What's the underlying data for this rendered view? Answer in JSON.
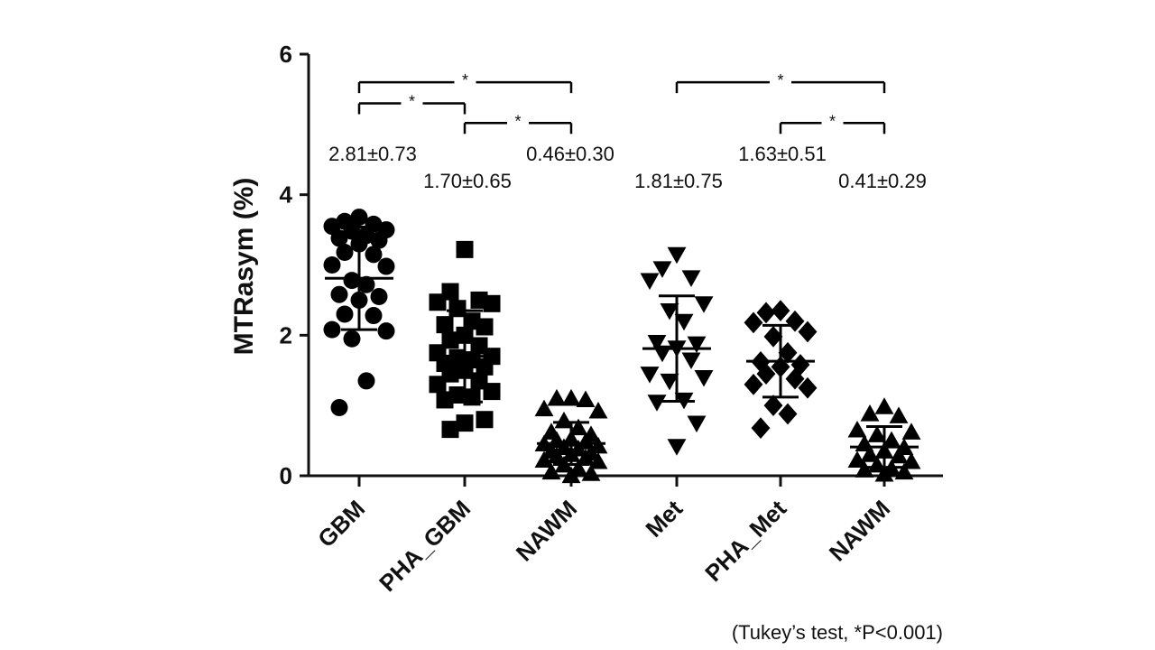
{
  "chart_data": {
    "type": "scatter",
    "ylabel": "MTRasym (%)",
    "ylim": [
      0,
      6
    ],
    "yticks": [
      0,
      2,
      4,
      6
    ],
    "categories": [
      "GBM",
      "PHA_GBM",
      "NAWM",
      "Met",
      "PHA_Met",
      "NAWM"
    ],
    "groups": [
      {
        "marker": "circle",
        "mean": 2.81,
        "sd": 0.73,
        "stat_label": "2.81±0.73",
        "points": [
          3.68,
          3.62,
          3.58,
          3.55,
          3.5,
          3.48,
          3.42,
          3.38,
          3.35,
          3.3,
          3.18,
          3.15,
          3.0,
          2.98,
          2.78,
          2.72,
          2.58,
          2.55,
          2.5,
          2.3,
          2.28,
          2.08,
          2.06,
          1.95,
          1.35,
          0.97
        ]
      },
      {
        "marker": "square",
        "mean": 1.7,
        "sd": 0.65,
        "stat_label": "1.70±0.65",
        "points": [
          3.22,
          2.62,
          2.5,
          2.47,
          2.45,
          2.38,
          2.2,
          2.15,
          2.12,
          2.0,
          1.93,
          1.85,
          1.75,
          1.7,
          1.68,
          1.65,
          1.6,
          1.55,
          1.5,
          1.45,
          1.35,
          1.3,
          1.2,
          1.15,
          1.12,
          1.08,
          0.8,
          0.75,
          0.66
        ]
      },
      {
        "marker": "triangle-up",
        "mean": 0.46,
        "sd": 0.3,
        "stat_label": "0.46±0.30",
        "points": [
          1.1,
          1.1,
          1.08,
          0.95,
          0.92,
          0.78,
          0.68,
          0.62,
          0.58,
          0.52,
          0.5,
          0.48,
          0.45,
          0.42,
          0.4,
          0.38,
          0.35,
          0.32,
          0.3,
          0.28,
          0.25,
          0.22,
          0.2,
          0.15,
          0.1,
          0.05,
          0.03,
          0.0
        ]
      },
      {
        "marker": "triangle-down",
        "mean": 1.81,
        "sd": 0.75,
        "stat_label": "1.81±0.75",
        "points": [
          3.15,
          2.95,
          2.82,
          2.78,
          2.45,
          2.35,
          2.2,
          1.9,
          1.88,
          1.82,
          1.75,
          1.65,
          1.45,
          1.4,
          1.35,
          1.08,
          1.05,
          0.75,
          0.42
        ]
      },
      {
        "marker": "diamond",
        "mean": 1.63,
        "sd": 0.51,
        "stat_label": "1.63±0.51",
        "points": [
          2.35,
          2.32,
          2.2,
          2.18,
          2.05,
          1.98,
          1.75,
          1.62,
          1.58,
          1.55,
          1.45,
          1.38,
          1.3,
          1.25,
          1.0,
          0.88,
          0.68
        ]
      },
      {
        "marker": "triangle-up",
        "mean": 0.41,
        "sd": 0.29,
        "stat_label": "0.41±0.29",
        "points": [
          0.98,
          0.88,
          0.85,
          0.65,
          0.62,
          0.58,
          0.5,
          0.45,
          0.4,
          0.35,
          0.3,
          0.28,
          0.22,
          0.2,
          0.15,
          0.1,
          0.08,
          0.05,
          0.02
        ]
      }
    ],
    "significance": [
      {
        "from": 0,
        "to": 2,
        "y": 5.6,
        "label": "*"
      },
      {
        "from": 0,
        "to": 1,
        "y": 5.3,
        "label": "*"
      },
      {
        "from": 1,
        "to": 2,
        "y": 5.02,
        "label": "*"
      },
      {
        "from": 3,
        "to": 5,
        "y": 5.6,
        "label": "*"
      },
      {
        "from": 4,
        "to": 5,
        "y": 5.02,
        "label": "*"
      }
    ],
    "footnote": "(Tukey’s test, *P<0.001)"
  }
}
